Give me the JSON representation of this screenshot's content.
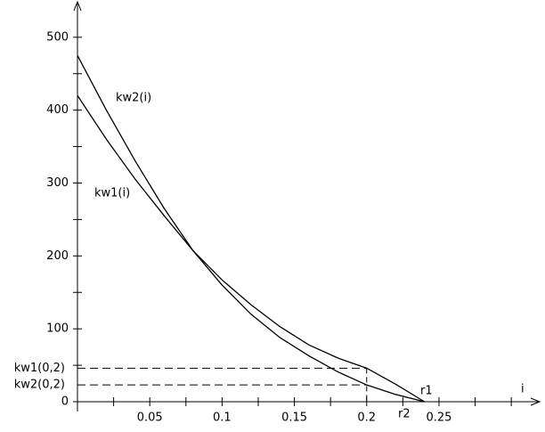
{
  "chart_data": {
    "type": "line",
    "x_label": "i",
    "x": [
      0,
      0.02,
      0.04,
      0.06,
      0.08,
      0.1,
      0.12,
      0.14,
      0.16,
      0.18,
      0.2,
      0.22,
      0.24
    ],
    "series": [
      {
        "name": "kw1(i)",
        "color": "#000000",
        "values": [
          420,
          360,
          305,
          255,
          207,
          167,
          133,
          103,
          78,
          60,
          46,
          24,
          0
        ]
      },
      {
        "name": "kw2(i)",
        "color": "#000000",
        "values": [
          475,
          400,
          330,
          265,
          207,
          160,
          120,
          88,
          63,
          41,
          23,
          10,
          0
        ]
      }
    ],
    "xlim": [
      0,
      0.315
    ],
    "ylim": [
      0,
      545
    ],
    "xticks": [
      0.05,
      0.1,
      0.15,
      0.2,
      0.25
    ],
    "xminorticks": [
      0.025,
      0.075,
      0.125,
      0.175,
      0.225,
      0.275,
      0.3
    ],
    "yticks": [
      0,
      100,
      200,
      300,
      400,
      500
    ],
    "yminorticks": [
      50,
      150,
      250,
      350,
      450
    ],
    "reference_x": 0.2,
    "reference_labels": [
      "kw1(0,2)",
      "kw2(0,2)"
    ],
    "root_labels": [
      "r1",
      "r2"
    ]
  }
}
